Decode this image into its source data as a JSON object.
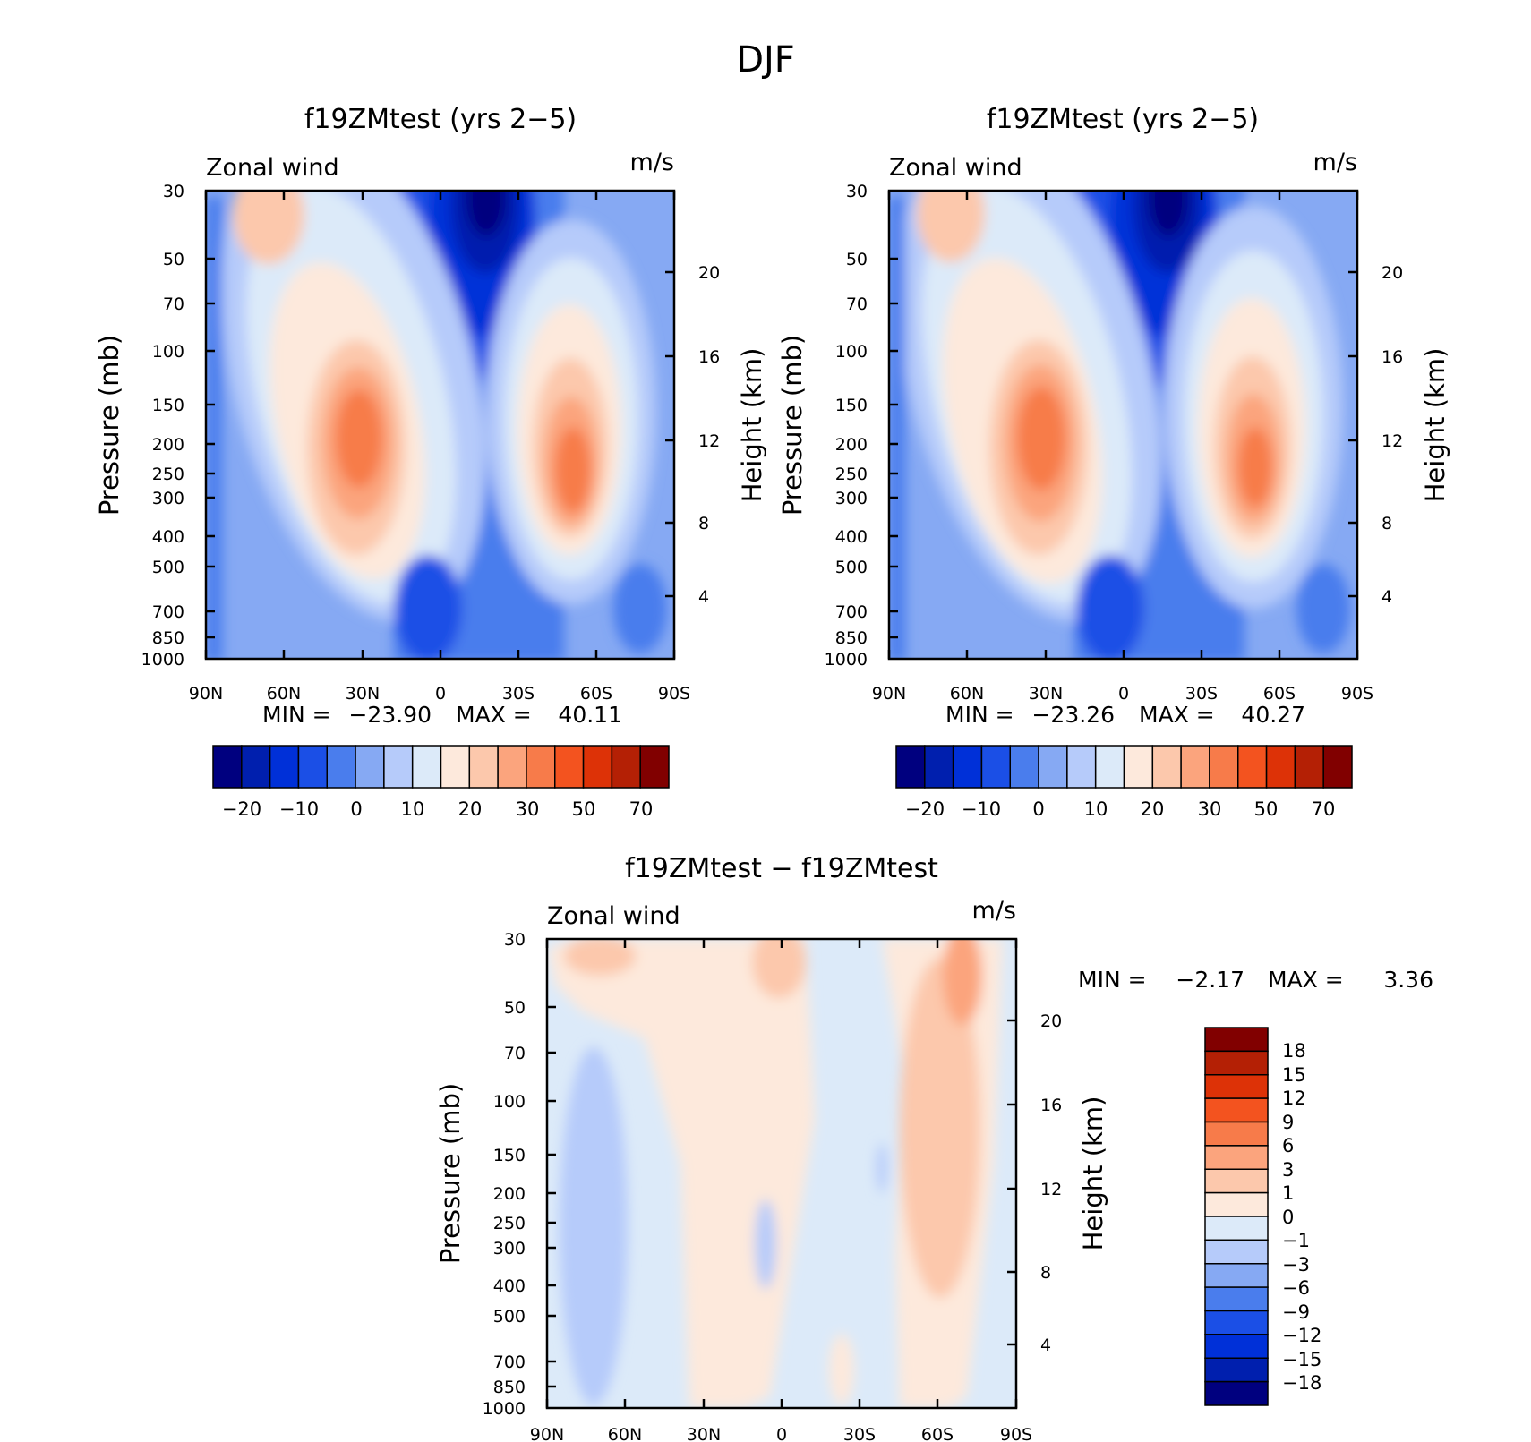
{
  "figure": {
    "title": "DJF"
  },
  "colors": {
    "abs": [
      "#00007f",
      "#001fae",
      "#0030d8",
      "#1b4fe6",
      "#4a7ded",
      "#86a9f3",
      "#b6cbfa",
      "#dceaf9",
      "#fde9dc",
      "#fcc8ac",
      "#fba47d",
      "#f77b4a",
      "#f3531f",
      "#dd3207",
      "#b42005",
      "#810000"
    ],
    "diff": [
      "#00007f",
      "#001fae",
      "#0030d8",
      "#1b4fe6",
      "#4a7ded",
      "#86a9f3",
      "#b6cbfa",
      "#dceaf9",
      "#fde9dc",
      "#fcc8ac",
      "#fba47d",
      "#f77b4a",
      "#f3531f",
      "#dd3207",
      "#b42005",
      "#810000"
    ]
  },
  "chart_data": [
    {
      "type": "heatmap",
      "title": "f19ZMtest (yrs 2−5)",
      "left_string": "Zonal wind",
      "right_string": "m/s",
      "ylabel": "Pressure (mb)",
      "ylabel_right": "Height (km)",
      "x_ticks": [
        "90N",
        "60N",
        "30N",
        "0",
        "30S",
        "60S",
        "90S"
      ],
      "y_ticks": [
        "30",
        "50",
        "70",
        "100",
        "150",
        "200",
        "250",
        "300",
        "400",
        "500",
        "700",
        "850",
        "1000"
      ],
      "y_right_ticks": [
        "20",
        "16",
        "12",
        "8",
        "4"
      ],
      "stats": {
        "min_label": "MIN =",
        "min": "−23.90",
        "max_label": "MAX =",
        "max": "40.11"
      },
      "colorbar_labels": [
        "−20",
        "−10",
        "0",
        "10",
        "20",
        "30",
        "50",
        "70"
      ],
      "features": [
        {
          "lat": 32,
          "p": 200,
          "value": 40.11
        },
        {
          "lat": -50,
          "p": 250,
          "value": 33
        },
        {
          "lat": -17,
          "p": 30,
          "value": -23.9
        },
        {
          "lat": 68,
          "p": 30,
          "value": 18
        }
      ]
    },
    {
      "type": "heatmap",
      "title": "f19ZMtest (yrs 2−5)",
      "left_string": "Zonal wind",
      "right_string": "m/s",
      "ylabel": "Pressure (mb)",
      "ylabel_right": "Height (km)",
      "x_ticks": [
        "90N",
        "60N",
        "30N",
        "0",
        "30S",
        "60S",
        "90S"
      ],
      "y_ticks": [
        "30",
        "50",
        "70",
        "100",
        "150",
        "200",
        "250",
        "300",
        "400",
        "500",
        "700",
        "850",
        "1000"
      ],
      "y_right_ticks": [
        "20",
        "16",
        "12",
        "8",
        "4"
      ],
      "stats": {
        "min_label": "MIN =",
        "min": "−23.26",
        "max_label": "MAX =",
        "max": "40.27"
      },
      "colorbar_labels": [
        "−20",
        "−10",
        "0",
        "10",
        "20",
        "30",
        "50",
        "70"
      ],
      "features": [
        {
          "lat": 31,
          "p": 200,
          "value": 40.27
        },
        {
          "lat": -50,
          "p": 250,
          "value": 33
        },
        {
          "lat": -17,
          "p": 30,
          "value": -23.26
        },
        {
          "lat": 67,
          "p": 30,
          "value": 17
        }
      ]
    },
    {
      "type": "heatmap",
      "title": "f19ZMtest − f19ZMtest",
      "left_string": "Zonal wind",
      "right_string": "m/s",
      "ylabel": "Pressure (mb)",
      "ylabel_right": "Height (km)",
      "x_ticks": [
        "90N",
        "60N",
        "30N",
        "0",
        "30S",
        "60S",
        "90S"
      ],
      "y_ticks": [
        "30",
        "50",
        "70",
        "100",
        "150",
        "200",
        "250",
        "300",
        "400",
        "500",
        "700",
        "850",
        "1000"
      ],
      "y_right_ticks": [
        "20",
        "16",
        "12",
        "8",
        "4"
      ],
      "stats": {
        "min_label": "MIN =",
        "min": "−2.17",
        "max_label": "MAX =",
        "max": "3.36"
      },
      "colorbar_labels": [
        "18",
        "15",
        "12",
        "9",
        "6",
        "3",
        "1",
        "0",
        "−1",
        "−3",
        "−6",
        "−9",
        "−12",
        "−15",
        "−18"
      ],
      "features": [
        {
          "lat": -72,
          "p": 40,
          "value": 3.36
        },
        {
          "lat": 62,
          "p": 250,
          "value": -2.17
        }
      ]
    }
  ]
}
